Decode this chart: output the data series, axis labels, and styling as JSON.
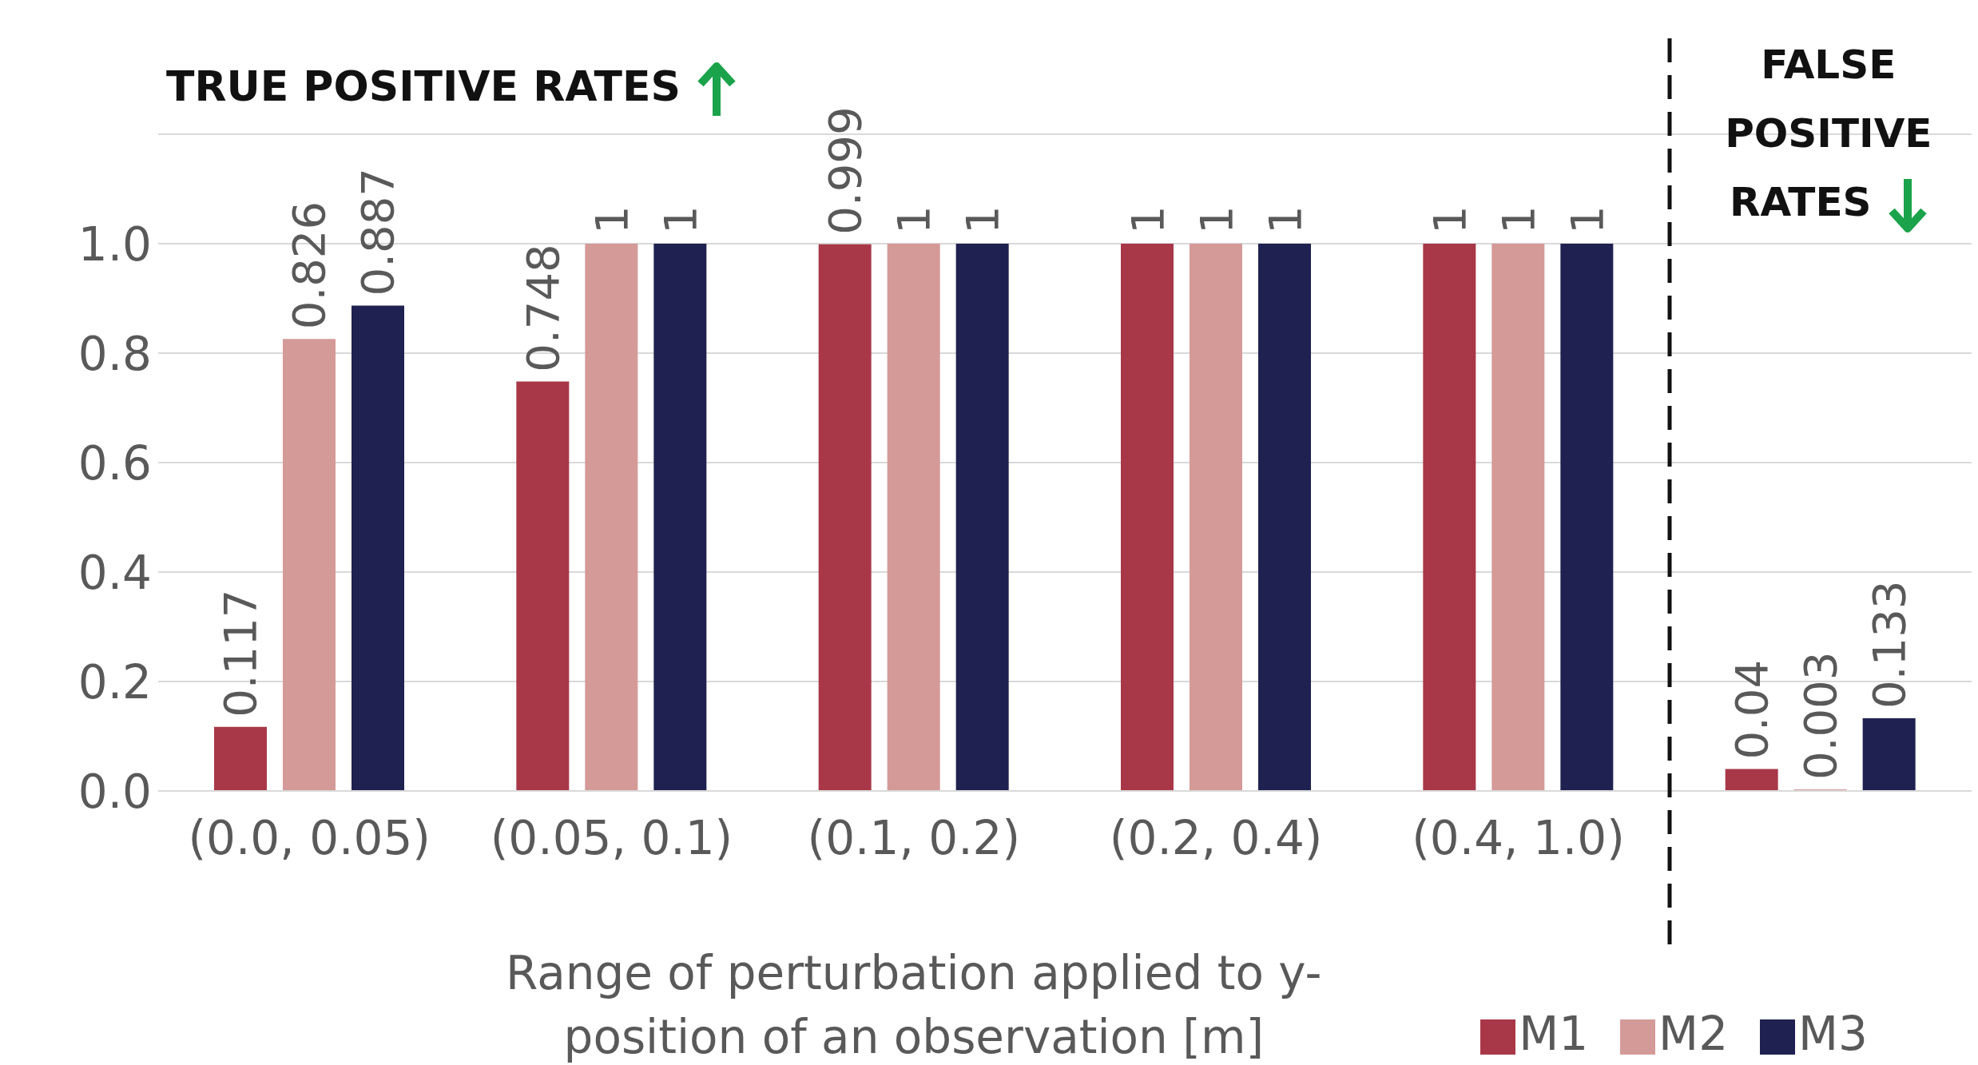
{
  "chart_data": {
    "type": "bar",
    "xlabel": "Range of perturbation applied to y-position of an observation [m]",
    "categories": [
      "(0.0, 0.05)",
      "(0.05, 0.1)",
      "(0.1, 0.2)",
      "(0.2, 0.4)",
      "(0.4, 1.0)",
      null
    ],
    "series": [
      {
        "name": "M1",
        "color": "#a83848",
        "values": [
          0.117,
          0.748,
          0.999,
          1,
          1,
          0.04
        ]
      },
      {
        "name": "M2",
        "color": "#d49a98",
        "values": [
          0.826,
          1,
          1,
          1,
          1,
          0.003
        ]
      },
      {
        "name": "M3",
        "color": "#1f2150",
        "values": [
          0.887,
          1,
          1,
          1,
          1,
          0.133
        ]
      }
    ],
    "ylim": [
      0,
      1.2
    ],
    "yticks": [
      {
        "value": 0,
        "label": "0.0"
      },
      {
        "value": 0.2,
        "label": "0.2"
      },
      {
        "value": 0.4,
        "label": "0.4"
      },
      {
        "value": 0.6,
        "label": "0.6"
      },
      {
        "value": 0.8,
        "label": "0.8"
      },
      {
        "value": 1,
        "label": "1.0"
      },
      {
        "value": 1.2,
        "label": null
      }
    ],
    "grid": "y",
    "legend": "bottom right",
    "data_labels": true,
    "annotations": [
      "TRUE POSITIVE RATES",
      "FALSE POSITIVE RATES"
    ]
  }
}
